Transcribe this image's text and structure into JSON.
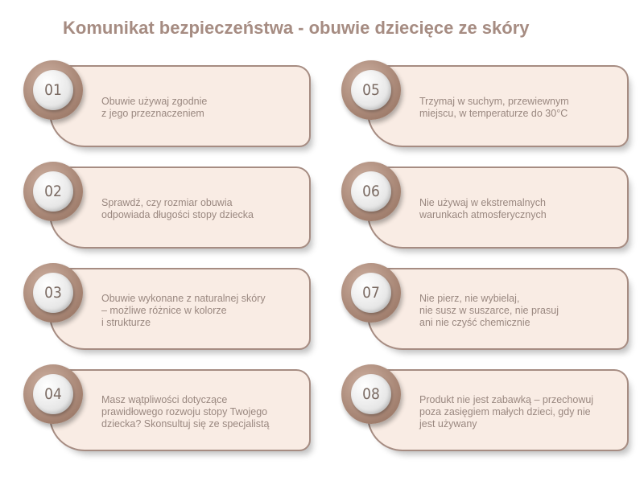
{
  "title": "Komunikat bezpieczeństwa - obuwie dziecięce ze skóry",
  "colors": {
    "accent": "#a68c82",
    "card_bg": "#f9ece4",
    "text": "#9a8880"
  },
  "items": [
    {
      "number": "01",
      "text": "Obuwie używaj zgodnie\nz jego przeznaczeniem"
    },
    {
      "number": "02",
      "text": "Sprawdź, czy rozmiar obuwia\nodpowiada długości stopy dziecka"
    },
    {
      "number": "03",
      "text": "Obuwie wykonane z naturalnej skóry\n– możliwe różnice w kolorze\ni strukturze"
    },
    {
      "number": "04",
      "text": "Masz wątpliwości dotyczące\nprawidłowego rozwoju stopy Twojego\ndziecka? Skonsultuj się ze specjalistą"
    },
    {
      "number": "05",
      "text": "Trzymaj w suchym, przewiewnym\nmiejscu, w temperaturze do 30°C"
    },
    {
      "number": "06",
      "text": "Nie używaj w ekstremalnych\nwarunkach atmosferycznych"
    },
    {
      "number": "07",
      "text": "Nie pierz, nie wybielaj,\nnie susz w suszarce, nie prasuj\nani nie czyść chemicznie"
    },
    {
      "number": "08",
      "text": "Produkt nie jest zabawką – przechowuj\npoza zasięgiem małych dzieci, gdy nie\njest używany"
    }
  ]
}
